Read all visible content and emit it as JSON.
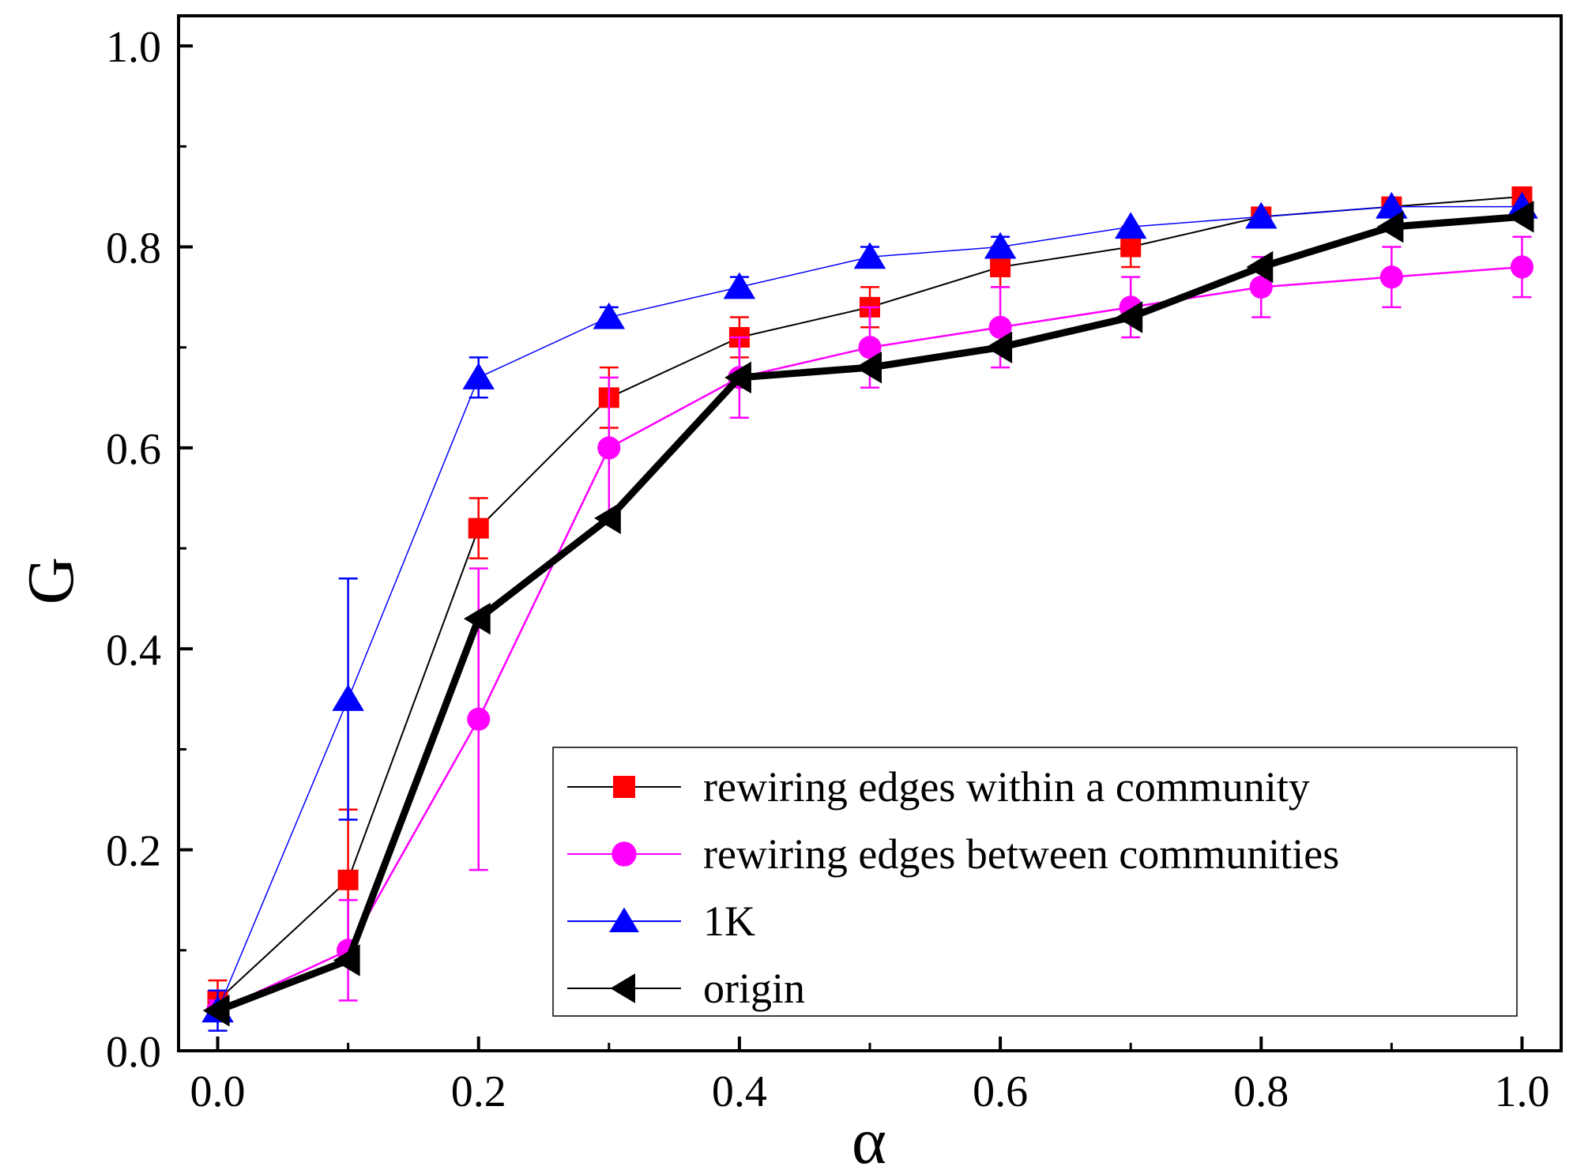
{
  "chart_data": {
    "type": "line",
    "title": "",
    "xlabel": "α",
    "ylabel": "G",
    "xlim": [
      -0.03,
      1.03
    ],
    "ylim": [
      0.0,
      1.03
    ],
    "xticks": [
      0.0,
      0.2,
      0.4,
      0.6,
      0.8,
      1.0
    ],
    "xtick_labels": [
      "0.0",
      "0.2",
      "0.4",
      "0.6",
      "0.8",
      "1.0"
    ],
    "yticks": [
      0.0,
      0.2,
      0.4,
      0.6,
      0.8,
      1.0
    ],
    "ytick_labels": [
      "0.0",
      "0.2",
      "0.4",
      "0.6",
      "0.8",
      "1.0"
    ],
    "grid": false,
    "legend_position": "bottom-right",
    "x": [
      0.0,
      0.1,
      0.2,
      0.3,
      0.4,
      0.5,
      0.6,
      0.7,
      0.8,
      0.9,
      1.0
    ],
    "series": [
      {
        "name": "rewiring edges within a community",
        "color": "#ff0000",
        "line_color": "#000000",
        "marker": "square",
        "values": [
          0.05,
          0.17,
          0.52,
          0.65,
          0.71,
          0.74,
          0.78,
          0.8,
          0.83,
          0.84,
          0.85
        ],
        "errors": [
          0.02,
          0.07,
          0.03,
          0.03,
          0.02,
          0.02,
          0.02,
          0.02,
          0.0,
          0.0,
          0.0
        ]
      },
      {
        "name": "rewiring edges between communities",
        "color": "#ff00ff",
        "line_color": "#ff00ff",
        "marker": "circle",
        "values": [
          0.04,
          0.1,
          0.33,
          0.6,
          0.67,
          0.7,
          0.72,
          0.74,
          0.76,
          0.77,
          0.78
        ],
        "errors": [
          0.01,
          0.05,
          0.15,
          0.07,
          0.04,
          0.04,
          0.04,
          0.03,
          0.03,
          0.03,
          0.03
        ]
      },
      {
        "name": "1K",
        "color": "#0000ff",
        "line_color": "#0000ff",
        "marker": "triangle-up",
        "values": [
          0.04,
          0.35,
          0.67,
          0.73,
          0.76,
          0.79,
          0.8,
          0.82,
          0.83,
          0.84,
          0.84
        ],
        "errors": [
          0.02,
          0.12,
          0.02,
          0.01,
          0.01,
          0.01,
          0.01,
          0.0,
          0.0,
          0.0,
          0.0
        ]
      },
      {
        "name": "origin",
        "color": "#000000",
        "line_color": "#000000",
        "marker": "triangle-left",
        "values": [
          0.04,
          0.09,
          0.43,
          0.53,
          0.67,
          0.68,
          0.7,
          0.73,
          0.78,
          0.82,
          0.83
        ],
        "errors": [
          0,
          0,
          0,
          0,
          0,
          0,
          0,
          0,
          0,
          0,
          0
        ]
      }
    ]
  }
}
